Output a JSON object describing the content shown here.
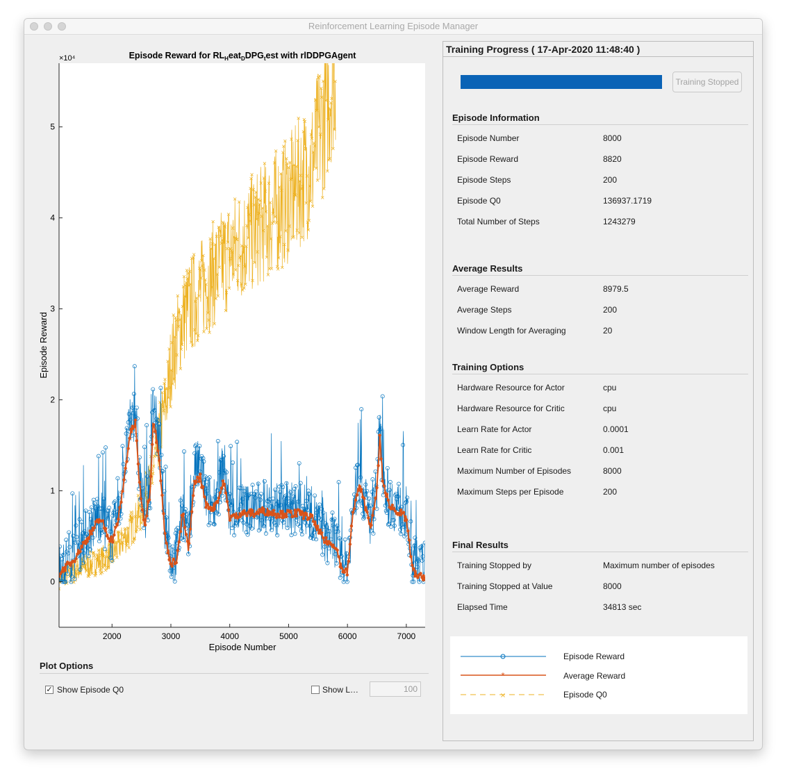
{
  "window": {
    "title": "Reinforcement Learning Episode Manager"
  },
  "chart_data": {
    "type": "line",
    "title": "Episode  Reward  for  RL_Heat_DDPG_test  with  rlDDPGAgent",
    "title_parts": {
      "a": "Episode  Reward  for  RL",
      "sub1": "H",
      "b": "eat",
      "sub2": "D",
      "c": "DPG",
      "sub3": "t",
      "d": "est  with  rlDDPGAgent"
    },
    "xlabel": "Episode Number",
    "ylabel": "Episode Reward",
    "y_exponent": "×10⁴",
    "xlim": [
      1100,
      7320
    ],
    "ylim": [
      -5000,
      57000
    ],
    "x_ticks": [
      2000,
      3000,
      4000,
      5000,
      6000,
      7000
    ],
    "x_tick_labels": [
      "2000",
      "3000",
      "4000",
      "5000",
      "6000",
      "7000"
    ],
    "y_ticks": [
      0,
      10000,
      20000,
      30000,
      40000,
      50000
    ],
    "y_tick_labels": [
      "0",
      "1",
      "2",
      "3",
      "4",
      "5"
    ],
    "grid": false,
    "series": [
      {
        "name": "Episode Reward",
        "color": "#0072bd",
        "marker": "o",
        "x": [
          1100,
          1300,
          1500,
          1700,
          1800,
          1900,
          2000,
          2100,
          2200,
          2300,
          2400,
          2450,
          2550,
          2650,
          2700,
          2800,
          2900,
          3000,
          3100,
          3200,
          3300,
          3400,
          3500,
          3600,
          3700,
          3800,
          3900,
          4000,
          4200,
          4400,
          4600,
          4800,
          5000,
          5200,
          5400,
          5600,
          5800,
          5900,
          6000,
          6100,
          6200,
          6300,
          6400,
          6500,
          6550,
          6600,
          6700,
          6800,
          6900,
          7000,
          7100,
          7200,
          7320
        ],
        "values": [
          1500,
          2500,
          4500,
          6500,
          7500,
          6000,
          5000,
          7000,
          12000,
          17000,
          19000,
          13000,
          7000,
          11000,
          20000,
          15000,
          6000,
          2500,
          3000,
          8000,
          4000,
          12000,
          13000,
          9000,
          8500,
          10000,
          13000,
          7500,
          8000,
          8000,
          8200,
          8000,
          8000,
          8000,
          7500,
          5000,
          4500,
          2000,
          1500,
          8500,
          11500,
          9000,
          6500,
          11000,
          17000,
          12000,
          9000,
          8500,
          8000,
          7500,
          2500,
          1500,
          1500
        ],
        "spread": 3000
      },
      {
        "name": "Average Reward",
        "color": "#d95319",
        "marker": "*",
        "x": [
          1100,
          1300,
          1500,
          1700,
          1800,
          1900,
          2000,
          2100,
          2200,
          2300,
          2400,
          2450,
          2550,
          2650,
          2700,
          2800,
          2900,
          3000,
          3100,
          3200,
          3300,
          3400,
          3500,
          3600,
          3700,
          3800,
          3900,
          4000,
          4200,
          4400,
          4600,
          4800,
          5000,
          5200,
          5400,
          5600,
          5800,
          5900,
          6000,
          6100,
          6200,
          6300,
          6400,
          6500,
          6550,
          6600,
          6700,
          6800,
          6900,
          7000,
          7100,
          7200,
          7320
        ],
        "values": [
          1000,
          2000,
          4000,
          6000,
          7000,
          5500,
          4500,
          6500,
          11000,
          16000,
          17500,
          12000,
          6000,
          10000,
          18000,
          14000,
          5000,
          2000,
          2500,
          7500,
          3500,
          11000,
          11500,
          8500,
          8000,
          9000,
          11000,
          7000,
          7500,
          7500,
          7800,
          7500,
          7500,
          7500,
          7000,
          4500,
          4000,
          1500,
          1000,
          8000,
          10500,
          8500,
          6000,
          10000,
          16000,
          11000,
          8500,
          8000,
          7500,
          7000,
          1500,
          500,
          500
        ]
      },
      {
        "name": "Episode Q0",
        "color": "#edb120",
        "marker": "x",
        "x": [
          1100,
          1500,
          2000,
          2300,
          2500,
          2700,
          2800,
          2950,
          3000,
          3200,
          3500,
          4000,
          4500,
          5000,
          5400,
          5600,
          5700,
          5800
        ],
        "values": [
          500,
          1500,
          3000,
          5500,
          8000,
          12000,
          16000,
          21000,
          24000,
          29000,
          32000,
          36000,
          39000,
          42000,
          46000,
          51000,
          54000,
          57000
        ],
        "spread": 8000
      }
    ]
  },
  "plot_options": {
    "title": "Plot Options",
    "show_q0_label": "Show Episode Q0",
    "show_q0_checked": true,
    "show_last_label": "Show L…",
    "show_last_checked": false,
    "last_value": "100"
  },
  "progress": {
    "header": "Training Progress ( 17-Apr-2020 11:48:40 )",
    "fraction": 1.0,
    "button_label": "Training Stopped",
    "bar_color": "#0a63b6"
  },
  "sections": {
    "episode_info": {
      "title": "Episode Information",
      "rows": [
        {
          "label": "Episode Number",
          "value": "8000"
        },
        {
          "label": "Episode Reward",
          "value": "8820"
        },
        {
          "label": "Episode Steps",
          "value": "200"
        },
        {
          "label": "Episode Q0",
          "value": "136937.1719"
        },
        {
          "label": "Total Number of Steps",
          "value": "1243279"
        }
      ]
    },
    "average": {
      "title": "Average Results",
      "rows": [
        {
          "label": "Average Reward",
          "value": "8979.5"
        },
        {
          "label": "Average Steps",
          "value": "200"
        },
        {
          "label": "Window Length for Averaging",
          "value": "20"
        }
      ]
    },
    "options": {
      "title": "Training Options",
      "rows": [
        {
          "label": "Hardware Resource for Actor",
          "value": "cpu"
        },
        {
          "label": "Hardware Resource for Critic",
          "value": "cpu"
        },
        {
          "label": "Learn Rate for Actor",
          "value": "0.0001"
        },
        {
          "label": "Learn Rate for Critic",
          "value": "0.001"
        },
        {
          "label": "Maximum Number of Episodes",
          "value": "8000"
        },
        {
          "label": "Maximum Steps per Episode",
          "value": "200"
        }
      ]
    },
    "final": {
      "title": "Final Results",
      "rows": [
        {
          "label": "Training Stopped by",
          "value": "Maximum number of episodes"
        },
        {
          "label": "Training Stopped at Value",
          "value": "8000"
        },
        {
          "label": "Elapsed Time",
          "value": "34813 sec"
        }
      ]
    }
  },
  "legend": {
    "items": [
      {
        "label": "Episode Reward"
      },
      {
        "label": "Average Reward"
      },
      {
        "label": "Episode Q0"
      }
    ]
  }
}
